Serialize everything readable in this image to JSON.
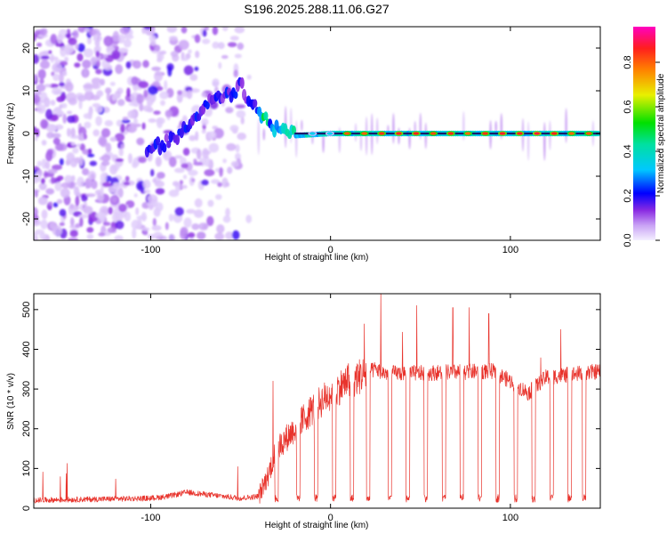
{
  "title": "S196.2025.288.11.06.G27",
  "chart_data": [
    {
      "type": "heatmap",
      "name": "spectrogram",
      "xlabel": "Height of straight line (km)",
      "ylabel": "Frequency (Hz)",
      "xlim": [
        -165,
        150
      ],
      "ylim": [
        -25,
        25
      ],
      "xticks": [
        -100,
        0,
        100
      ],
      "yticks": [
        -20,
        -10,
        0,
        10,
        20
      ],
      "colorbar": {
        "label": "Normalized spectral amplitude",
        "range": [
          0.0,
          0.96
        ],
        "ticks": [
          0.0,
          0.2,
          0.4,
          0.6,
          0.8
        ],
        "colormap": "rainbow-purple-to-magenta"
      },
      "ridge": {
        "x": [
          -100,
          -90,
          -80,
          -70,
          -60,
          -50,
          -45,
          -40,
          -35,
          -30,
          -25,
          -20,
          0,
          50,
          100,
          150
        ],
        "frequency": [
          -3,
          -2,
          2,
          6,
          9,
          11,
          8,
          5,
          3,
          1.5,
          0,
          -0.5,
          0,
          0,
          0,
          0
        ]
      },
      "notes": "scattered low-amplitude noise below x=-45 km; strong tone at 0 Hz for x > -20 km"
    },
    {
      "type": "line",
      "name": "snr",
      "xlabel": "Height of straight line (km)",
      "ylabel": "SNR (10 * v/v)",
      "xlim": [
        -165,
        150
      ],
      "ylim": [
        0,
        540
      ],
      "xticks": [
        -100,
        0,
        100
      ],
      "yticks": [
        0,
        100,
        200,
        300,
        400,
        500
      ],
      "color": "#e8332c",
      "baseline_profile": {
        "x": [
          -165,
          -100,
          -90,
          -80,
          -60,
          -50,
          -40,
          -35,
          -30,
          -20,
          -10,
          0,
          10,
          20,
          25,
          30,
          50,
          90,
          100,
          110,
          120,
          130,
          150
        ],
        "snr": [
          20,
          25,
          30,
          40,
          30,
          25,
          30,
          80,
          150,
          200,
          250,
          290,
          320,
          340,
          350,
          340,
          340,
          345,
          320,
          290,
          330,
          335,
          345
        ]
      },
      "dropouts_x": [
        -30,
        -18,
        -8,
        2,
        12,
        21,
        33,
        43,
        53,
        63,
        73,
        83,
        93,
        103,
        113,
        123,
        133,
        141
      ],
      "dropout_level": 15,
      "spikes": [
        {
          "x": -32,
          "snr": 320
        },
        {
          "x": 28,
          "snr": 540
        },
        {
          "x": 48,
          "snr": 510
        },
        {
          "x": 68,
          "snr": 505
        },
        {
          "x": 88,
          "snr": 490
        },
        {
          "x": 128,
          "snr": 450
        }
      ]
    }
  ]
}
